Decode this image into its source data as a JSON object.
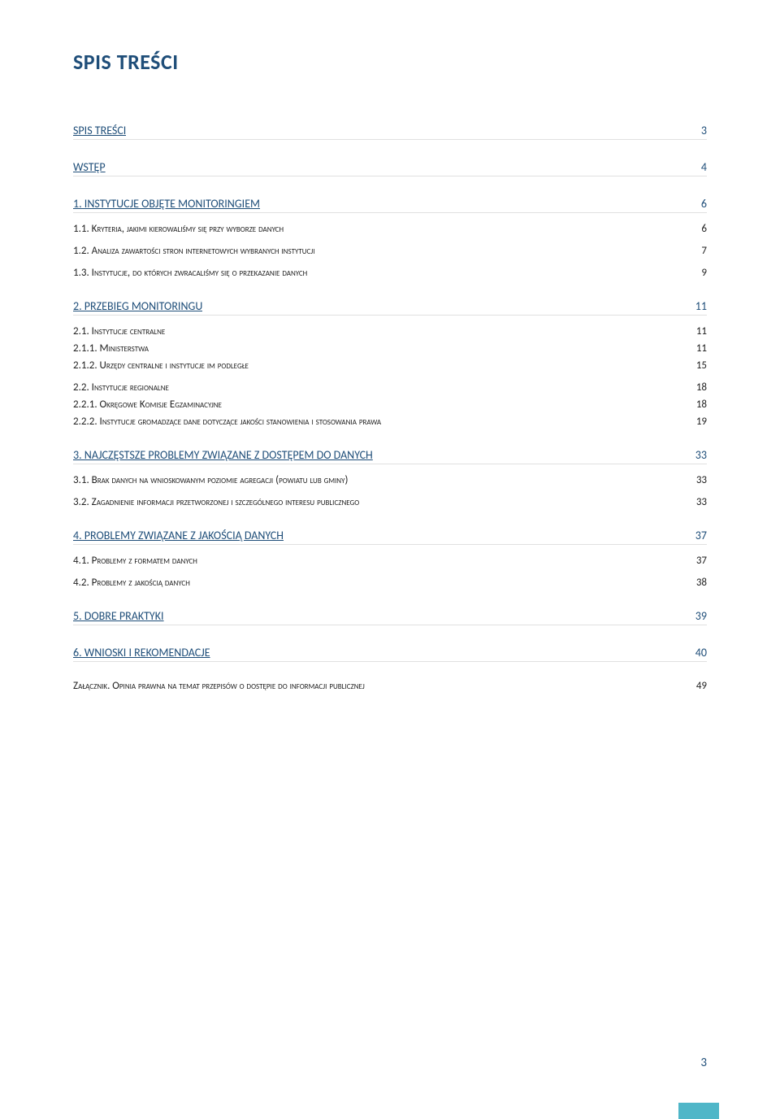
{
  "title": "SPIS TREŚCI",
  "page_number": "3",
  "colors": {
    "heading": "#1f4e79",
    "body": "#222222",
    "underline": "#e0e0e0",
    "corner": "#4fb6c8",
    "background": "#ffffff"
  },
  "toc": [
    {
      "level": 1,
      "label": "SPIS TREŚCI",
      "page": "3"
    },
    {
      "level": 1,
      "label": "WSTĘP",
      "page": "4"
    },
    {
      "level": 1,
      "label": "1. INSTYTUCJE OBJĘTE MONITORINGIEM",
      "page": "6"
    },
    {
      "level": 2,
      "label": "1.1. Kryteria, jakimi kierowaliśmy się przy wyborze danych",
      "page": "6"
    },
    {
      "level": 2,
      "label": "1.2. Analiza zawartości stron internetowych wybranych instytucji",
      "page": "7"
    },
    {
      "level": 2,
      "label": "1.3. Instytucje, do których zwracaliśmy się o przekazanie danych",
      "page": "9"
    },
    {
      "level": 1,
      "label": "2. PRZEBIEG MONITORINGU",
      "page": "11"
    },
    {
      "level": 2,
      "label": "2.1. Instytucje centralne",
      "page": "11"
    },
    {
      "level": 3,
      "label": "2.1.1. Ministerstwa",
      "page": "11"
    },
    {
      "level": 3,
      "label": "2.1.2. Urzędy centralne i instytucje im podległe",
      "page": "15"
    },
    {
      "level": 2,
      "label": "2.2. Instytucje regionalne",
      "page": "18"
    },
    {
      "level": 3,
      "label": "2.2.1. Okręgowe Komisje Egzaminacyjne",
      "page": "18"
    },
    {
      "level": 3,
      "label": "2.2.2. Instytucje gromadzące dane dotyczące jakości stanowienia i stosowania prawa",
      "page": "19"
    },
    {
      "level": 1,
      "label": "3. NAJCZĘSTSZE PROBLEMY ZWIĄZANE Z DOSTĘPEM DO DANYCH",
      "page": "33"
    },
    {
      "level": 2,
      "label": "3.1. Brak danych na wnioskowanym poziomie agregacji (powiatu lub gminy)",
      "page": "33"
    },
    {
      "level": 2,
      "label": "3.2. Zagadnienie informacji przetworzonej i szczególnego interesu publicznego",
      "page": "33"
    },
    {
      "level": 1,
      "label": "4. PROBLEMY ZWIĄZANE Z JAKOŚCIĄ DANYCH",
      "page": "37"
    },
    {
      "level": 2,
      "label": "4.1. Problemy z formatem danych",
      "page": "37"
    },
    {
      "level": 2,
      "label": "4.2. Problemy z jakością danych",
      "page": "38"
    },
    {
      "level": 1,
      "label": "5. DOBRE PRAKTYKI",
      "page": "39"
    },
    {
      "level": 1,
      "label": "6. WNIOSKI I REKOMENDACJE",
      "page": "40"
    },
    {
      "level": 2,
      "label": "Załącznik. Opinia prawna na temat przepisów o dostępie do informacji publicznej",
      "page": "49",
      "gap": true
    }
  ]
}
